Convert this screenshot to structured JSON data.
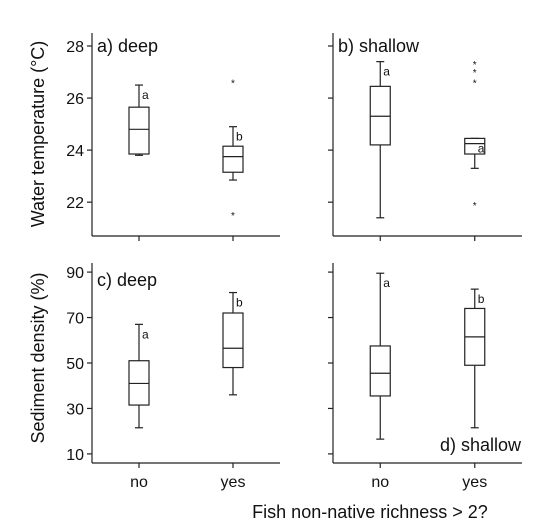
{
  "x_axis_label": "Fish non-native richness > 2?",
  "colors": {
    "ink": "#222222",
    "box_fill": "#ffffff",
    "outlier": "#555555"
  },
  "chart_data": [
    {
      "type": "box",
      "panel_label": "a) deep",
      "ylabel": "Water temperature (°C)",
      "ylim": [
        20.7,
        28.5
      ],
      "yticks": [
        22,
        24,
        26,
        28
      ],
      "categories": [
        "no",
        "yes"
      ],
      "boxes": [
        {
          "category": "no",
          "whisker_low": 23.8,
          "q1": 23.85,
          "median": 24.8,
          "q3": 25.65,
          "whisker_high": 26.5,
          "outliers": [],
          "letter": "a"
        },
        {
          "category": "yes",
          "whisker_low": 22.85,
          "q1": 23.15,
          "median": 23.75,
          "q3": 24.15,
          "whisker_high": 24.9,
          "outliers": [
            21.5,
            26.6
          ],
          "letter": "b"
        }
      ]
    },
    {
      "type": "box",
      "panel_label": "b) shallow",
      "ylabel": "",
      "ylim": [
        20.7,
        28.5
      ],
      "yticks": [
        22,
        24,
        26,
        28
      ],
      "categories": [
        "no",
        "yes"
      ],
      "boxes": [
        {
          "category": "no",
          "whisker_low": 21.4,
          "q1": 24.2,
          "median": 25.3,
          "q3": 26.45,
          "whisker_high": 27.4,
          "outliers": [],
          "letter": "a"
        },
        {
          "category": "yes",
          "whisker_low": 23.3,
          "q1": 23.85,
          "median": 24.25,
          "q3": 24.45,
          "whisker_high": 24.45,
          "outliers": [
            21.9,
            26.6,
            27.0,
            27.3
          ],
          "letter": "a"
        }
      ]
    },
    {
      "type": "box",
      "panel_label": "c) deep",
      "ylabel": "Sediment density (%)",
      "ylim": [
        6,
        94
      ],
      "yticks": [
        10,
        30,
        50,
        70,
        90
      ],
      "categories": [
        "no",
        "yes"
      ],
      "boxes": [
        {
          "category": "no",
          "whisker_low": 21.5,
          "q1": 31.5,
          "median": 41,
          "q3": 51,
          "whisker_high": 67,
          "outliers": [],
          "letter": "a"
        },
        {
          "category": "yes",
          "whisker_low": 36,
          "q1": 48,
          "median": 56.5,
          "q3": 72,
          "whisker_high": 81,
          "outliers": [],
          "letter": "b"
        }
      ]
    },
    {
      "type": "box",
      "panel_label": "d) shallow",
      "ylabel": "",
      "ylim": [
        6,
        94
      ],
      "yticks": [
        10,
        30,
        50,
        70,
        90
      ],
      "categories": [
        "no",
        "yes"
      ],
      "boxes": [
        {
          "category": "no",
          "whisker_low": 16.5,
          "q1": 35.5,
          "median": 45.5,
          "q3": 57.5,
          "whisker_high": 89.5,
          "outliers": [],
          "letter": "a"
        },
        {
          "category": "yes",
          "whisker_low": 21.5,
          "q1": 49,
          "median": 61.5,
          "q3": 74,
          "whisker_high": 82.5,
          "outliers": [],
          "letter": "b"
        }
      ]
    }
  ]
}
